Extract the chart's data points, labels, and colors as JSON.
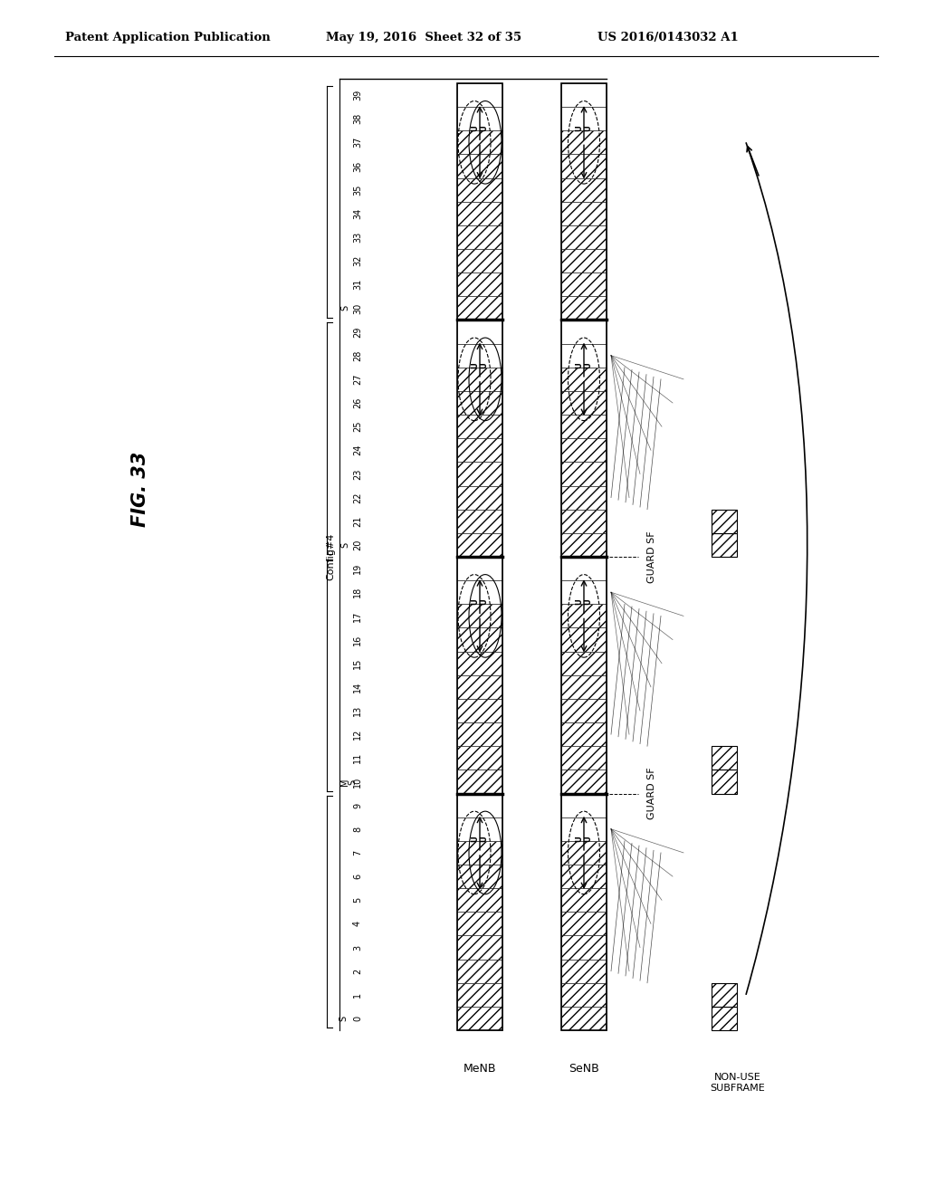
{
  "header_left": "Patent Application Publication",
  "header_mid": "May 19, 2016  Sheet 32 of 35",
  "header_right": "US 2016/0143032 A1",
  "fig_label": "FIG. 33",
  "config_label": "Config#4",
  "menb_label": "MeNB",
  "senb_label": "SeNB",
  "nonuse_label": "NON-USE\nSUBFRAME",
  "guard_sf_label": "GUARD SF",
  "subframe_numbers": [
    "0",
    "1",
    "2",
    "3",
    "4",
    "5",
    "6",
    "7",
    "8",
    "9",
    "10",
    "11",
    "12",
    "13",
    "14",
    "15",
    "16",
    "17",
    "18",
    "19",
    "20",
    "21",
    "22",
    "23",
    "24",
    "25",
    "26",
    "27",
    "28",
    "29",
    "30",
    "31",
    "32",
    "33",
    "34",
    "35",
    "36",
    "37",
    "38",
    "39"
  ],
  "background_color": "#ffffff"
}
